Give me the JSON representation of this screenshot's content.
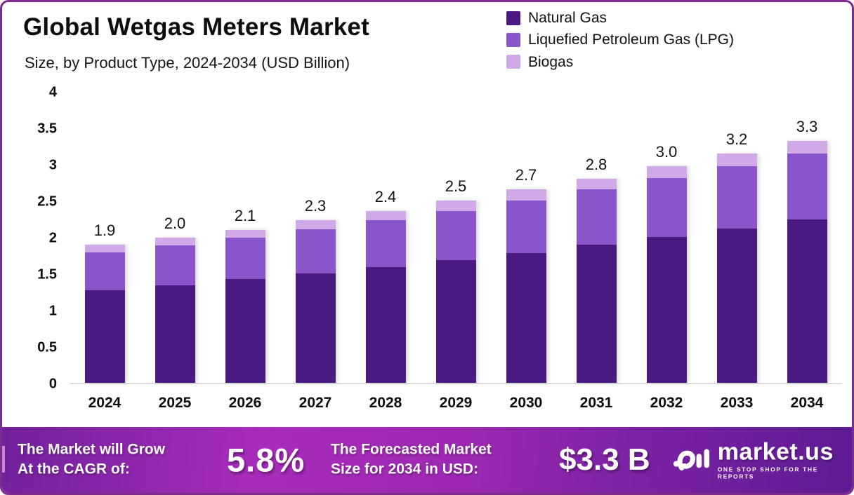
{
  "header": {
    "title": "Global Wetgas Meters Market",
    "subtitle": "Size, by Product Type, 2024-2034 (USD Billion)"
  },
  "legend": {
    "position": "top-right",
    "items": [
      {
        "label": "Natural Gas",
        "color": "#4a1a82"
      },
      {
        "label": "Liquefied Petroleum Gas (LPG)",
        "color": "#8a55cb"
      },
      {
        "label": "Biogas",
        "color": "#cfa9e8"
      }
    ]
  },
  "chart_data": {
    "type": "bar",
    "stacked": true,
    "title": "Global Wetgas Meters Market Size, by Product Type, 2024-2034 (USD Billion)",
    "xlabel": "",
    "ylabel": "",
    "ylim": [
      0,
      4
    ],
    "ytick_step": 0.5,
    "yticks_top_down": [
      "4",
      "3.5",
      "3",
      "2.5",
      "2",
      "1.5",
      "1",
      "0.5",
      "0"
    ],
    "grid": false,
    "legend_position": "top-right",
    "categories": [
      "2024",
      "2025",
      "2026",
      "2027",
      "2028",
      "2029",
      "2030",
      "2031",
      "2032",
      "2033",
      "2034"
    ],
    "series": [
      {
        "name": "Natural Gas",
        "color": "#4a1a82",
        "values": [
          1.27,
          1.34,
          1.42,
          1.5,
          1.59,
          1.68,
          1.78,
          1.89,
          2.0,
          2.12,
          2.24
        ]
      },
      {
        "name": "Liquefied Petroleum Gas (LPG)",
        "color": "#8a55cb",
        "values": [
          0.52,
          0.54,
          0.57,
          0.61,
          0.64,
          0.68,
          0.72,
          0.76,
          0.81,
          0.85,
          0.9
        ]
      },
      {
        "name": "Biogas",
        "color": "#cfa9e8",
        "values": [
          0.1,
          0.11,
          0.11,
          0.12,
          0.13,
          0.14,
          0.15,
          0.15,
          0.16,
          0.17,
          0.18
        ]
      }
    ],
    "total_labels": [
      "1.9",
      "2.0",
      "2.1",
      "2.3",
      "2.4",
      "2.5",
      "2.7",
      "2.8",
      "3.0",
      "3.2",
      "3.3"
    ]
  },
  "footer": {
    "cagr_label_line1": "The Market will Grow",
    "cagr_label_line2": "At the CAGR of:",
    "cagr_value": "5.8%",
    "forecast_label_line1": "The Forecasted Market",
    "forecast_label_line2": "Size for 2034 in USD:",
    "forecast_value": "$3.3 B",
    "brand_name": "market.us",
    "brand_tagline": "ONE STOP SHOP FOR THE REPORTS"
  },
  "colors": {
    "frame_border": "#7b2d8f",
    "axis_line": "#dcdcdc",
    "banner_gradient": [
      "#71219c",
      "#a82cbb",
      "#9c28b2",
      "#5e1b92"
    ],
    "text": "#0d0d0d"
  }
}
